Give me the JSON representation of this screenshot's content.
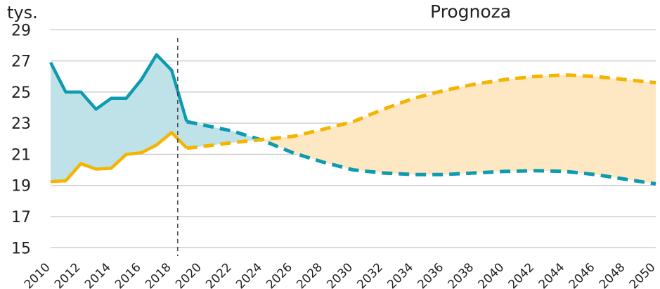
{
  "chart_data": {
    "type": "line",
    "unit_label": "tys.",
    "forecast_label": "Prognoza",
    "x": [
      2010,
      2011,
      2012,
      2013,
      2014,
      2015,
      2016,
      2017,
      2018,
      2019,
      2020,
      2022,
      2024,
      2026,
      2028,
      2030,
      2032,
      2034,
      2036,
      2038,
      2040,
      2042,
      2044,
      2046,
      2048,
      2050
    ],
    "x_ticks": [
      2010,
      2012,
      2014,
      2016,
      2018,
      2020,
      2022,
      2024,
      2026,
      2028,
      2030,
      2032,
      2034,
      2036,
      2038,
      2040,
      2042,
      2044,
      2046,
      2048,
      2050
    ],
    "y_ticks": [
      15,
      17,
      19,
      21,
      23,
      25,
      27,
      29
    ],
    "ylim": [
      14.2,
      30.1
    ],
    "forecast_start": 2019,
    "vline_x": 2018.4,
    "series": [
      {
        "color": "#0e9bb0",
        "values": [
          26.9,
          25.0,
          25.0,
          23.9,
          24.6,
          24.6,
          25.8,
          27.4,
          26.4,
          23.1,
          22.9,
          22.5,
          21.9,
          21.1,
          20.5,
          20.0,
          19.8,
          19.7,
          19.7,
          19.8,
          19.9,
          19.95,
          19.9,
          19.7,
          19.4,
          19.1
        ]
      },
      {
        "color": "#f4b400",
        "values": [
          19.25,
          19.3,
          20.4,
          20.05,
          20.1,
          21.0,
          21.1,
          21.6,
          22.4,
          21.4,
          21.5,
          21.75,
          21.95,
          22.15,
          22.6,
          23.1,
          23.9,
          24.6,
          25.1,
          25.5,
          25.8,
          26.0,
          26.1,
          26.0,
          25.8,
          25.6
        ]
      }
    ],
    "fill_colors": {
      "historic": "#bfe1e8",
      "forecast": "#fde8c3"
    },
    "grid": true
  }
}
